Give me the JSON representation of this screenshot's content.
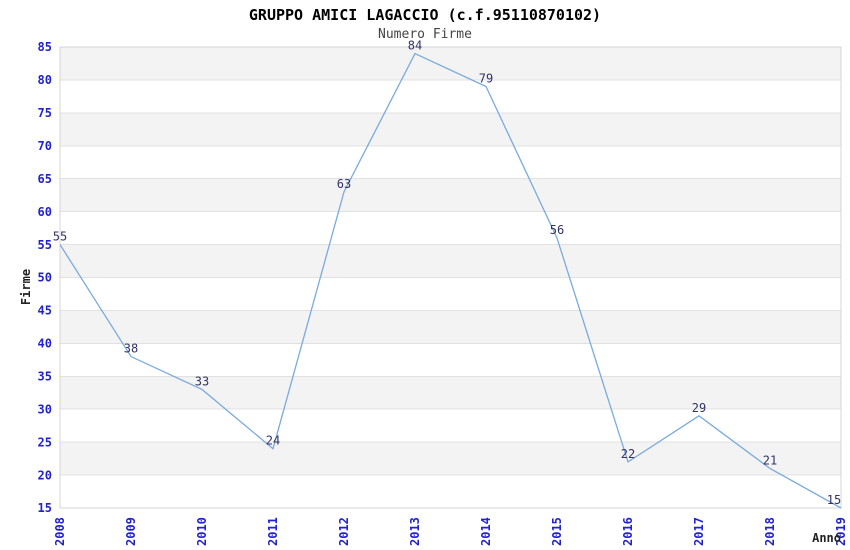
{
  "chart_data": {
    "type": "line",
    "title": "GRUPPO AMICI LAGACCIO (c.f.95110870102)",
    "subtitle": "Numero Firme",
    "xlabel": "Anno",
    "ylabel": "Firme",
    "categories": [
      "2008",
      "2009",
      "2010",
      "2011",
      "2012",
      "2013",
      "2014",
      "2015",
      "2016",
      "2017",
      "2018",
      "2019"
    ],
    "values": [
      55,
      38,
      33,
      24,
      63,
      84,
      79,
      56,
      22,
      29,
      21,
      15
    ],
    "ylim": [
      15,
      85
    ],
    "ytick_step": 5,
    "grid": true,
    "legend": "none",
    "colors": {
      "line": "#7aaade",
      "tick_label": "#2222cc",
      "point_label": "#333366",
      "band": "#f3f3f3",
      "grid_line": "#e1e1e1",
      "plot_border": "#d6d6d6",
      "title": "#000000",
      "subtitle": "#444444",
      "axis_label": "#222222",
      "background": "#ffffff"
    }
  }
}
